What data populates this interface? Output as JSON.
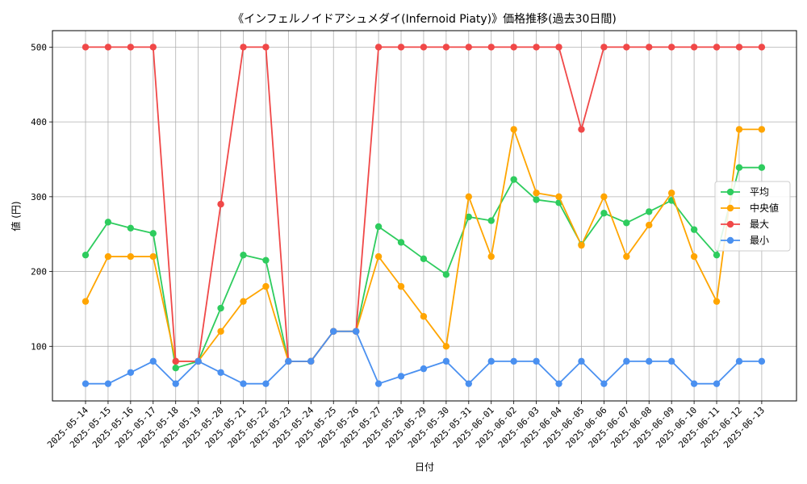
{
  "chart_data": {
    "type": "line",
    "title": "《インフェルノイドアシュメダイ(Infernoid Piaty)》価格推移(過去30日間)",
    "xlabel": "日付",
    "ylabel": "値 (円)",
    "ylim": [
      27,
      522
    ],
    "yticks": [
      100,
      200,
      300,
      400,
      500
    ],
    "grid": true,
    "legend_position": "center-right",
    "categories": [
      "2025-05-14",
      "2025-05-15",
      "2025-05-16",
      "2025-05-17",
      "2025-05-18",
      "2025-05-19",
      "2025-05-20",
      "2025-05-21",
      "2025-05-22",
      "2025-05-23",
      "2025-05-24",
      "2025-05-25",
      "2025-05-26",
      "2025-05-27",
      "2025-05-28",
      "2025-05-29",
      "2025-05-30",
      "2025-05-31",
      "2025-06-01",
      "2025-06-02",
      "2025-06-03",
      "2025-06-04",
      "2025-06-05",
      "2025-06-06",
      "2025-06-07",
      "2025-06-08",
      "2025-06-09",
      "2025-06-10",
      "2025-06-11",
      "2025-06-12",
      "2025-06-13"
    ],
    "series": [
      {
        "name": "平均",
        "color": "#2ecc5e",
        "values": [
          222,
          266,
          258,
          251,
          71,
          80,
          151,
          222,
          215,
          80,
          80,
          120,
          120,
          260,
          239,
          217,
          196,
          273,
          268,
          323,
          296,
          292,
          236,
          278,
          265,
          280,
          295,
          256,
          222,
          339,
          339
        ]
      },
      {
        "name": "中央値",
        "color": "#ffa500",
        "values": [
          160,
          220,
          220,
          220,
          80,
          80,
          120,
          160,
          180,
          80,
          80,
          120,
          120,
          220,
          180,
          140,
          100,
          300,
          220,
          390,
          305,
          300,
          235,
          300,
          220,
          262,
          305,
          220,
          160,
          390,
          390
        ]
      },
      {
        "name": "最大",
        "color": "#f04848",
        "values": [
          500,
          500,
          500,
          500,
          80,
          80,
          290,
          500,
          500,
          80,
          80,
          120,
          120,
          500,
          500,
          500,
          500,
          500,
          500,
          500,
          500,
          500,
          390,
          500,
          500,
          500,
          500,
          500,
          500,
          500,
          500
        ]
      },
      {
        "name": "最小",
        "color": "#4a90f0",
        "values": [
          50,
          50,
          65,
          80,
          50,
          80,
          65,
          50,
          50,
          80,
          80,
          120,
          120,
          50,
          60,
          70,
          80,
          50,
          80,
          80,
          80,
          50,
          80,
          50,
          80,
          80,
          80,
          50,
          50,
          80,
          80
        ]
      }
    ]
  }
}
